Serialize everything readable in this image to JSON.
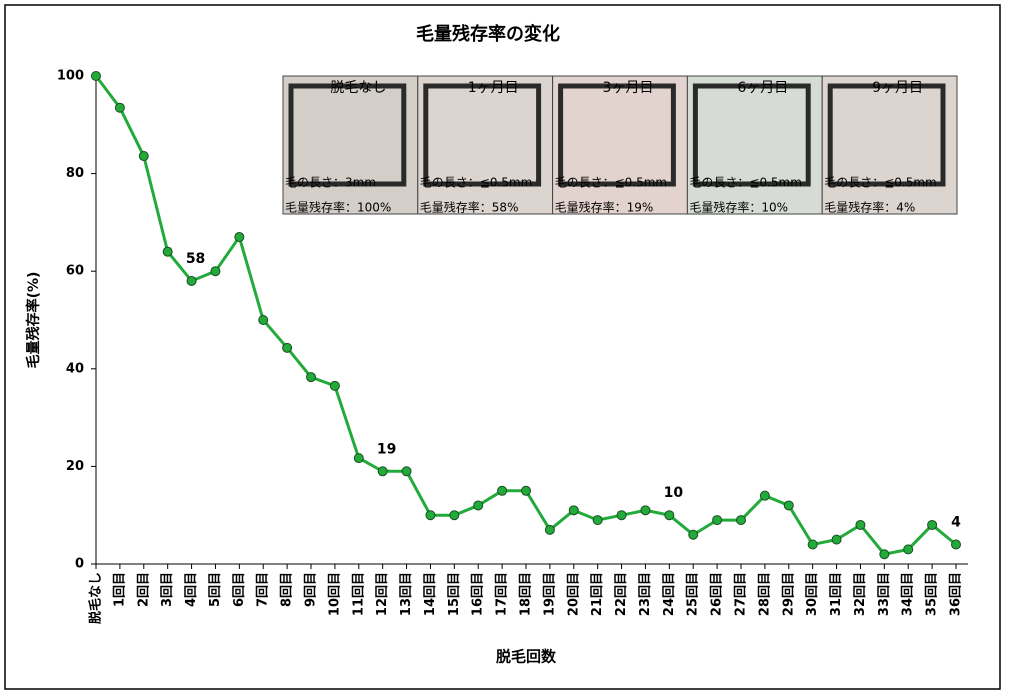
{
  "chart_data": {
    "type": "line",
    "title": "毛量残存率の変化",
    "x_label": "脱毛回数",
    "y_label": "毛量残存率(%)",
    "categories": [
      "脱毛なし",
      "1回目",
      "2回目",
      "3回目",
      "4回目",
      "5回目",
      "6回目",
      "7回目",
      "8回目",
      "9回目",
      "10回目",
      "11回目",
      "12回目",
      "13回目",
      "14回目",
      "15回目",
      "16回目",
      "17回目",
      "18回目",
      "19回目",
      "20回目",
      "21回目",
      "22回目",
      "23回目",
      "24回目",
      "25回目",
      "26回目",
      "27回目",
      "28回目",
      "29回目",
      "30回目",
      "31回目",
      "32回目",
      "33回目",
      "34回目",
      "35回目",
      "36回目"
    ],
    "values": [
      100,
      93.5,
      83.6,
      64,
      58,
      60,
      67,
      50,
      44.3,
      38.3,
      36.5,
      21.7,
      19,
      19,
      10,
      10,
      12,
      15,
      15,
      7,
      11,
      9,
      10,
      11,
      10,
      6,
      9,
      9,
      14,
      12,
      4,
      5,
      8,
      2,
      3,
      8,
      4
    ],
    "value_labels": [
      null,
      null,
      null,
      null,
      "58",
      null,
      null,
      null,
      null,
      null,
      null,
      null,
      "19",
      null,
      null,
      null,
      null,
      null,
      null,
      null,
      null,
      null,
      null,
      null,
      "10",
      null,
      null,
      null,
      null,
      null,
      null,
      null,
      null,
      null,
      null,
      null,
      "4"
    ],
    "color": "#22aa3a",
    "ylim": [
      0,
      100
    ],
    "yticks": [
      0,
      20,
      40,
      60,
      80,
      100
    ],
    "grid": false,
    "photos": [
      {
        "label": "脱毛なし",
        "length": "毛の長さ：3mm",
        "rate": "毛量残存率：100%"
      },
      {
        "label": "1ヶ月目",
        "length": "毛の長さ：≦0.5mm",
        "rate": "毛量残存率：58%"
      },
      {
        "label": "3ヶ月目",
        "length": "毛の長さ：≦0.5mm",
        "rate": "毛量残存率：19%"
      },
      {
        "label": "6ヶ月目",
        "length": "毛の長さ：≦0.5mm",
        "rate": "毛量残存率：10%"
      },
      {
        "label": "9ヶ月目",
        "length": "毛の長さ：≦0.5mm",
        "rate": "毛量残存率：4%"
      }
    ]
  }
}
